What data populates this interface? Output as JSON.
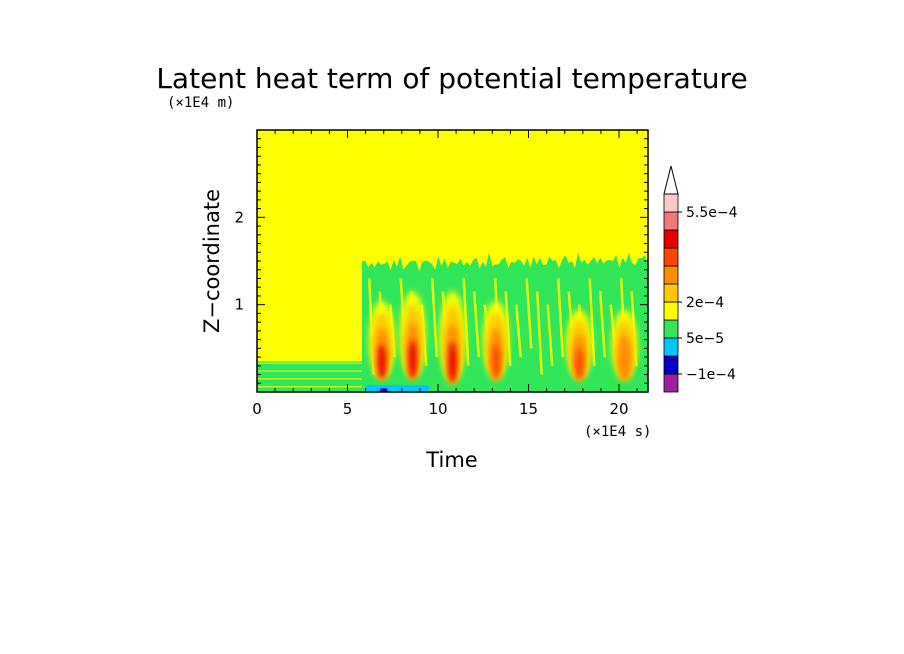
{
  "chart_data": {
    "type": "heatmap",
    "title": "Latent heat term of potential temperature",
    "xlabel": "Time",
    "ylabel": "Z−coordinate",
    "x_unit": "(×1E4 s)",
    "y_unit": "(×1E4 m)",
    "xlim": [
      0,
      21.6
    ],
    "ylim": [
      0,
      3
    ],
    "x_ticks": [
      0,
      5,
      10,
      15,
      20
    ],
    "y_ticks": [
      1,
      2
    ],
    "colorbar": {
      "labels": [
        "5.5e−4",
        "2e−4",
        "5e−5",
        "−1e−4"
      ],
      "colors": [
        "#a020a0",
        "#0000c8",
        "#00c8ff",
        "#32e65a",
        "#ffff00",
        "#ffc800",
        "#ff8c00",
        "#ff4600",
        "#e60000",
        "#f07878",
        "#ffc8c8",
        "#ffffff"
      ]
    },
    "regions": {
      "background_color": "#ffff00",
      "boundary_layer": {
        "x": [
          0,
          5.8
        ],
        "z_top": 0.35,
        "color": "#32e65a"
      },
      "convective_layer": {
        "x": [
          5.8,
          21.6
        ],
        "z_top_start": 1.45,
        "z_top_end": 1.5,
        "color": "#32e65a"
      },
      "heating_cells": [
        {
          "x": 6.9,
          "z": [
            0.1,
            1.0
          ],
          "peak": "#e60000"
        },
        {
          "x": 8.6,
          "z": [
            0.1,
            1.1
          ],
          "peak": "#e60000"
        },
        {
          "x": 10.8,
          "z": [
            0.05,
            1.1
          ],
          "peak": "#e60000"
        },
        {
          "x": 13.2,
          "z": [
            0.1,
            1.0
          ],
          "peak": "#ff4600"
        },
        {
          "x": 17.8,
          "z": [
            0.1,
            0.9
          ],
          "peak": "#ff4600"
        },
        {
          "x": 20.3,
          "z": [
            0.1,
            0.9
          ],
          "peak": "#ff8c00"
        }
      ],
      "cooling_spots": [
        {
          "x": [
            6.0,
            9.5
          ],
          "z": [
            0,
            0.08
          ],
          "color": "#00c8ff"
        },
        {
          "x": [
            6.8,
            7.2
          ],
          "z": [
            0,
            0.04
          ],
          "color": "#0000c8"
        }
      ]
    }
  }
}
